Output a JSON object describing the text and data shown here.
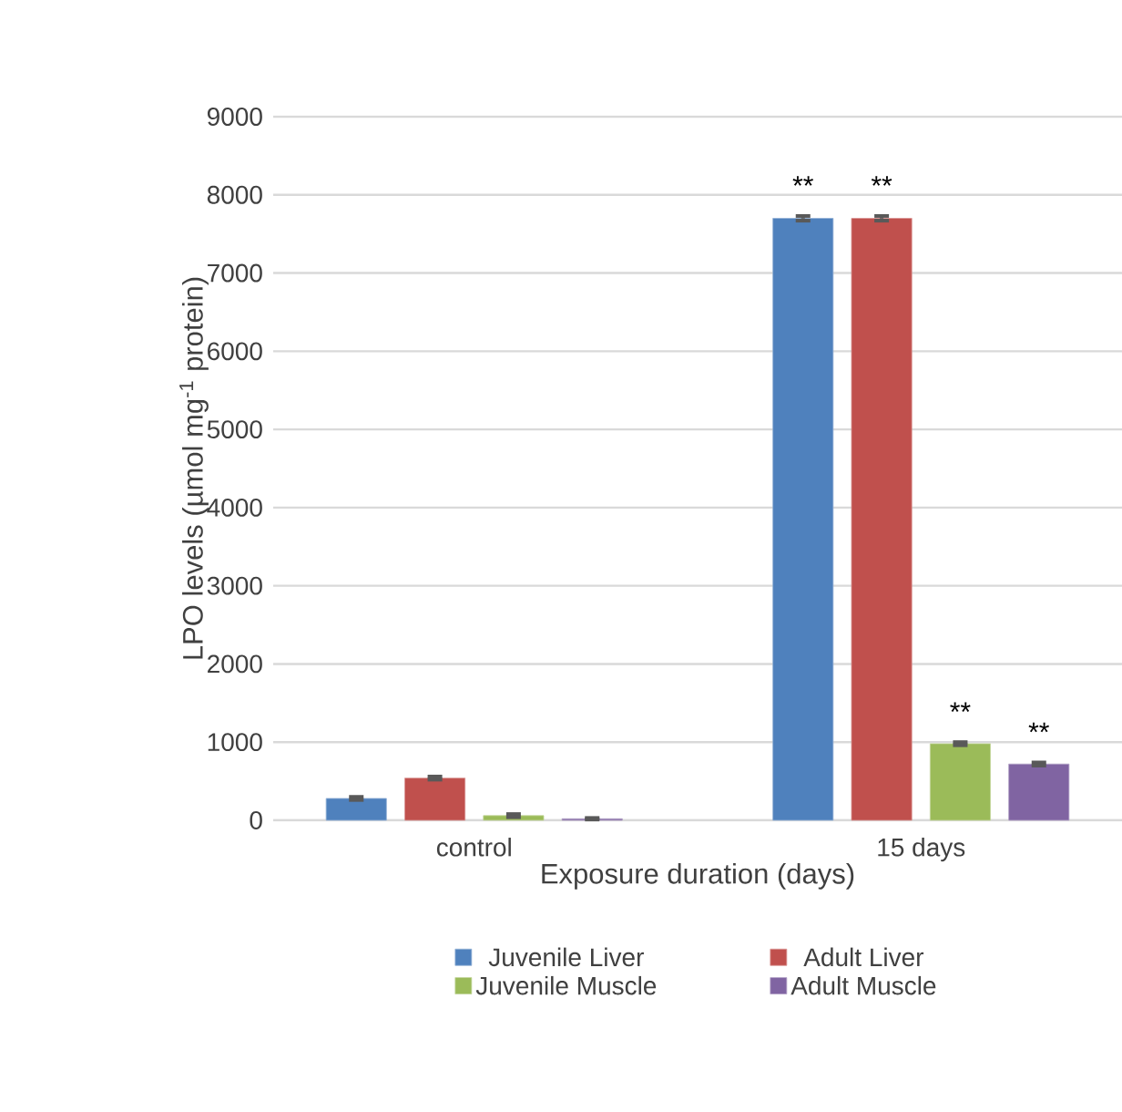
{
  "chart_data": {
    "type": "bar",
    "xlabel": "Exposure duration (days)",
    "ylabel": "LPO levels (µmol mg$^{-1}$ protein)",
    "categories": [
      "control",
      "15 days"
    ],
    "series": [
      {
        "name": "Juvenile Liver",
        "color": "#4f81bd",
        "values": [
          280,
          7700
        ],
        "errors": [
          20,
          30
        ]
      },
      {
        "name": "Adult Liver",
        "color": "#c0504d",
        "values": [
          540,
          7700
        ],
        "errors": [
          20,
          30
        ]
      },
      {
        "name": "Juvenile Muscle",
        "color": "#9bbb59",
        "values": [
          60,
          980
        ],
        "errors": [
          20,
          20
        ]
      },
      {
        "name": "Adult Muscle",
        "color": "#8064a2",
        "values": [
          20,
          720
        ],
        "errors": [
          10,
          20
        ]
      }
    ],
    "ylim": [
      0,
      9000
    ],
    "yticks": [
      0,
      1000,
      2000,
      3000,
      4000,
      5000,
      6000,
      7000,
      8000,
      9000
    ],
    "grid": "y",
    "legend": "bottom",
    "annotations": [
      "**",
      "**",
      "**",
      "**"
    ]
  }
}
